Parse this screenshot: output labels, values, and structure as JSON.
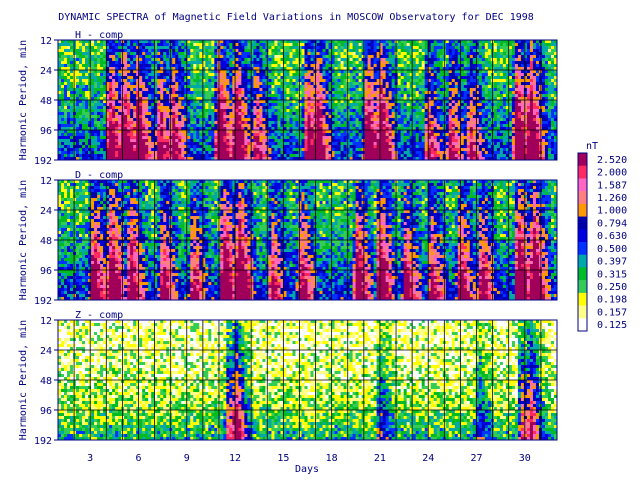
{
  "chart_data": {
    "type": "heatmap",
    "title": "DYNAMIC SPECTRA of Magnetic Field Variations in MOSCOW Observatory for DEC 1998",
    "xlabel": "Days",
    "ylabel": "Harmonic Period, min",
    "x_ticks": [
      3,
      6,
      9,
      12,
      15,
      18,
      21,
      24,
      27,
      30
    ],
    "xlim": [
      1,
      32
    ],
    "y_ticks": [
      12,
      24,
      48,
      96,
      192
    ],
    "y_scale": "log2",
    "panels": [
      {
        "name": "H - comp",
        "base": 0.26,
        "events": [
          [
            4.2,
            0.9
          ],
          [
            5.1,
            0.8
          ],
          [
            6.0,
            0.8
          ],
          [
            7.3,
            0.7
          ],
          [
            8.2,
            0.6
          ],
          [
            11.0,
            1.0
          ],
          [
            12.1,
            0.9
          ],
          [
            13.3,
            0.6
          ],
          [
            16.5,
            0.8
          ],
          [
            17.2,
            0.6
          ],
          [
            20.2,
            0.9
          ],
          [
            21.1,
            0.8
          ],
          [
            24.0,
            0.6
          ],
          [
            25.4,
            0.6
          ],
          [
            26.6,
            0.6
          ],
          [
            29.5,
            1.0
          ],
          [
            30.4,
            0.9
          ]
        ]
      },
      {
        "name": "D - comp",
        "base": 0.28,
        "events": [
          [
            3.2,
            0.8
          ],
          [
            4.3,
            0.9
          ],
          [
            5.5,
            0.8
          ],
          [
            7.5,
            0.7
          ],
          [
            9.4,
            0.6
          ],
          [
            11.3,
            1.0
          ],
          [
            12.3,
            0.9
          ],
          [
            14.3,
            0.6
          ],
          [
            16.1,
            0.7
          ],
          [
            19.6,
            0.8
          ],
          [
            21.0,
            0.9
          ],
          [
            22.6,
            0.7
          ],
          [
            24.2,
            0.6
          ],
          [
            26.0,
            0.7
          ],
          [
            27.3,
            0.7
          ],
          [
            29.6,
            1.0
          ],
          [
            30.6,
            0.9
          ]
        ]
      },
      {
        "name": "Z - comp",
        "base": 0.07,
        "events": [
          [
            11.6,
            0.6
          ],
          [
            12.1,
            0.55
          ],
          [
            21.0,
            0.4
          ],
          [
            27.1,
            0.35
          ],
          [
            29.8,
            0.6
          ],
          [
            30.4,
            0.5
          ]
        ]
      }
    ],
    "colorbar": {
      "unit": "nT",
      "labels": [
        "2.520",
        "2.000",
        "1.587",
        "1.260",
        "1.000",
        "0.794",
        "0.630",
        "0.500",
        "0.397",
        "0.315",
        "0.250",
        "0.198",
        "0.157",
        "0.125"
      ],
      "colors": [
        "#a0005a",
        "#ff2a60",
        "#ff66c0",
        "#ff7f7f",
        "#ff9900",
        "#0000aa",
        "#0000dd",
        "#0033ff",
        "#00a8a8",
        "#00bb22",
        "#33cc55",
        "#ffff00",
        "#ffff88",
        "#ffffff"
      ]
    }
  }
}
